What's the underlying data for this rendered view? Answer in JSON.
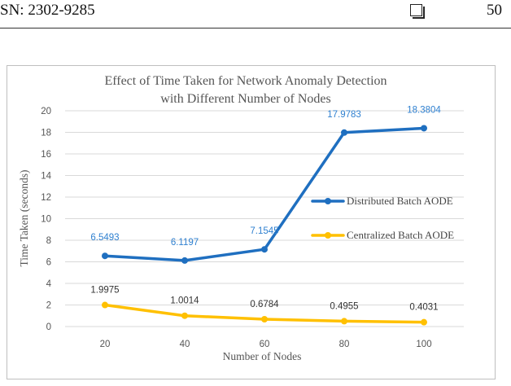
{
  "header": {
    "left_text": "SN: 2302-9285",
    "page_number": "50"
  },
  "chart_data": {
    "type": "line",
    "title": [
      "Effect of Time Taken for Network Anomaly Detection",
      "with Different Number of Nodes"
    ],
    "xlabel": "Number of Nodes",
    "ylabel": "Time Taken (seconds)",
    "categories": [
      "20",
      "40",
      "60",
      "80",
      "100"
    ],
    "ylim": [
      0,
      20
    ],
    "yticks": [
      0,
      2,
      4,
      6,
      8,
      10,
      12,
      14,
      16,
      18,
      20
    ],
    "grid": true,
    "legend_position": "right",
    "series": [
      {
        "name": "Distributed Batch AODE",
        "color": "#1f6fc0",
        "values": [
          6.5493,
          6.1197,
          7.1545,
          17.9783,
          18.3804
        ],
        "labels": [
          "6.5493",
          "6.1197",
          "7.1545",
          "17.9783",
          "18.3804"
        ],
        "label_color": "#2f80d0"
      },
      {
        "name": "Centralized Batch AODE",
        "color": "#ffc000",
        "values": [
          1.9975,
          1.0014,
          0.6784,
          0.4955,
          0.4031
        ],
        "labels": [
          "1.9975",
          "1.0014",
          "0.6784",
          "0.4955",
          "0.4031"
        ],
        "label_color": "#333333"
      }
    ]
  }
}
